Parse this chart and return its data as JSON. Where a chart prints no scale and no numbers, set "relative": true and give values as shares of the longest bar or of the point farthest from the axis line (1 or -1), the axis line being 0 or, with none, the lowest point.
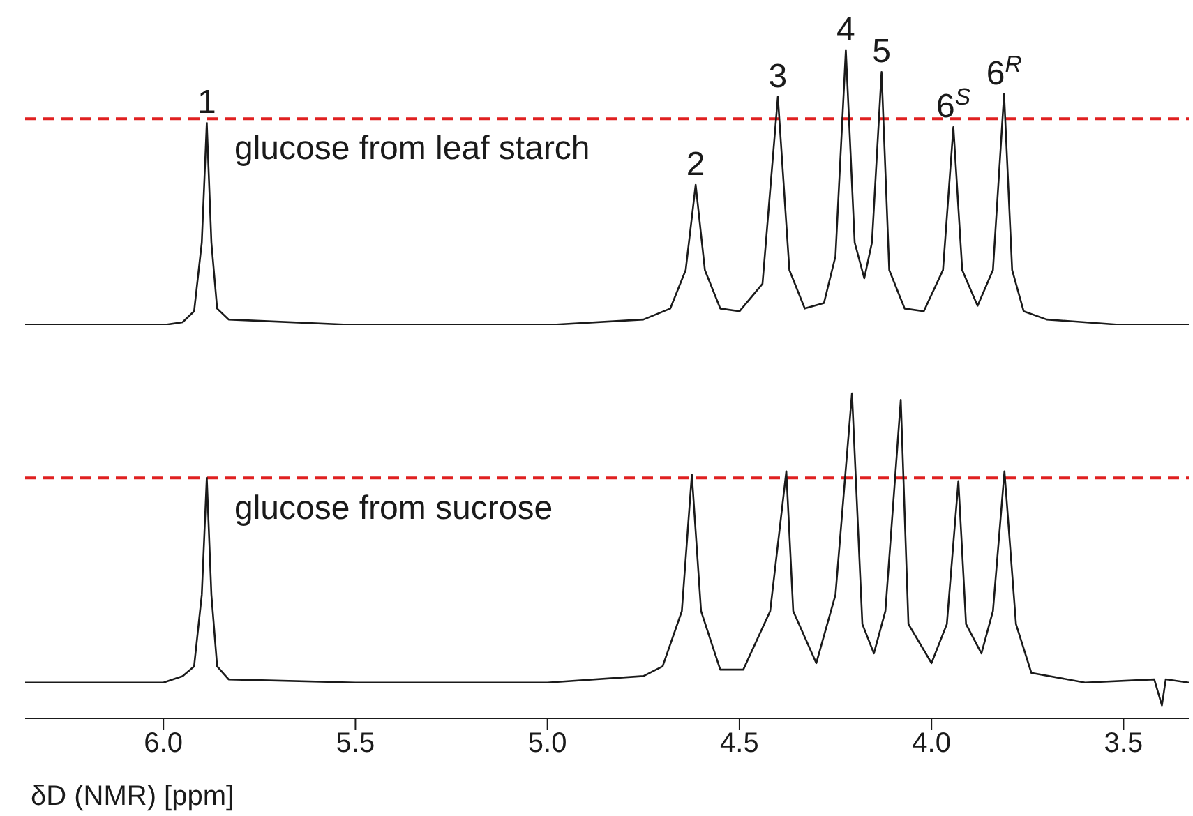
{
  "chart_data": [
    {
      "type": "line",
      "relative": true,
      "xlim": [
        6.36,
        3.33
      ],
      "tick_labels": false,
      "ref_lines": [
        {
          "axis": "y",
          "value": 0.75,
          "color": "#e02020",
          "line_style": "dashed"
        }
      ],
      "annotations": [
        "glucose from leaf starch",
        {
          "text": "1",
          "x": 5.887,
          "y": 0.735
        },
        {
          "text": "2",
          "x": 4.614,
          "y": 0.51
        },
        {
          "text": "3",
          "x": 4.4,
          "y": 0.83
        },
        {
          "text": "4",
          "x": 4.223,
          "y": 1.0
        },
        {
          "text": "5",
          "x": 4.13,
          "y": 0.92
        },
        {
          "text": "6$^{S}$",
          "x": 3.943,
          "y": 0.72
        },
        {
          "text": "6$^{R}$",
          "x": 3.811,
          "y": 0.84
        }
      ],
      "series": [
        {
          "color": "#1a1a1a",
          "x": [
            6.36,
            6.0,
            5.95,
            5.92,
            5.9,
            5.887,
            5.875,
            5.86,
            5.83,
            5.5,
            5.0,
            4.75,
            4.68,
            4.64,
            4.614,
            4.59,
            4.55,
            4.5,
            4.44,
            4.4,
            4.37,
            4.33,
            4.28,
            4.25,
            4.223,
            4.2,
            4.175,
            4.155,
            4.13,
            4.11,
            4.07,
            4.02,
            3.97,
            3.943,
            3.92,
            3.88,
            3.84,
            3.811,
            3.79,
            3.76,
            3.7,
            3.5,
            3.33
          ],
          "values": [
            0,
            0,
            0.01,
            0.05,
            0.3,
            0.735,
            0.3,
            0.06,
            0.02,
            0,
            0,
            0.02,
            0.06,
            0.2,
            0.51,
            0.2,
            0.06,
            0.05,
            0.15,
            0.83,
            0.2,
            0.06,
            0.08,
            0.25,
            1.0,
            0.3,
            0.17,
            0.3,
            0.92,
            0.2,
            0.06,
            0.05,
            0.2,
            0.72,
            0.2,
            0.07,
            0.2,
            0.84,
            0.2,
            0.05,
            0.02,
            0,
            0
          ]
        }
      ]
    },
    {
      "type": "line",
      "relative": true,
      "xlim": [
        6.36,
        3.33
      ],
      "xticks": [
        {
          "value": 6,
          "label": "6.0"
        },
        5.5,
        {
          "value": 5,
          "label": "5.0"
        },
        4.5,
        {
          "value": 4,
          "label": "4.0"
        },
        3.5
      ],
      "tick_labels": "x",
      "xlabel": "δD (NMR) [ppm]",
      "ref_lines": [
        {
          "axis": "y",
          "value": 0.74,
          "color": "#e02020",
          "line_style": "dashed"
        }
      ],
      "annotations": [
        "glucose from sucrose"
      ],
      "series": [
        {
          "color": "#1a1a1a",
          "x": [
            6.36,
            6.0,
            5.95,
            5.92,
            5.9,
            5.887,
            5.875,
            5.86,
            5.83,
            5.5,
            5.0,
            4.75,
            4.7,
            4.65,
            4.624,
            4.6,
            4.55,
            4.49,
            4.42,
            4.378,
            4.36,
            4.3,
            4.25,
            4.207,
            4.18,
            4.15,
            4.12,
            4.08,
            4.06,
            4.0,
            3.96,
            3.93,
            3.91,
            3.87,
            3.84,
            3.81,
            3.78,
            3.74,
            3.6,
            3.42,
            3.4,
            3.39,
            3.33
          ],
          "values": [
            0.11,
            0.11,
            0.13,
            0.16,
            0.38,
            0.74,
            0.38,
            0.16,
            0.12,
            0.11,
            0.11,
            0.13,
            0.16,
            0.33,
            0.75,
            0.33,
            0.15,
            0.15,
            0.33,
            0.76,
            0.33,
            0.17,
            0.38,
            1.0,
            0.29,
            0.2,
            0.33,
            0.98,
            0.29,
            0.17,
            0.29,
            0.73,
            0.29,
            0.2,
            0.33,
            0.76,
            0.29,
            0.14,
            0.11,
            0.12,
            0.04,
            0.12,
            0.11
          ]
        }
      ]
    }
  ]
}
